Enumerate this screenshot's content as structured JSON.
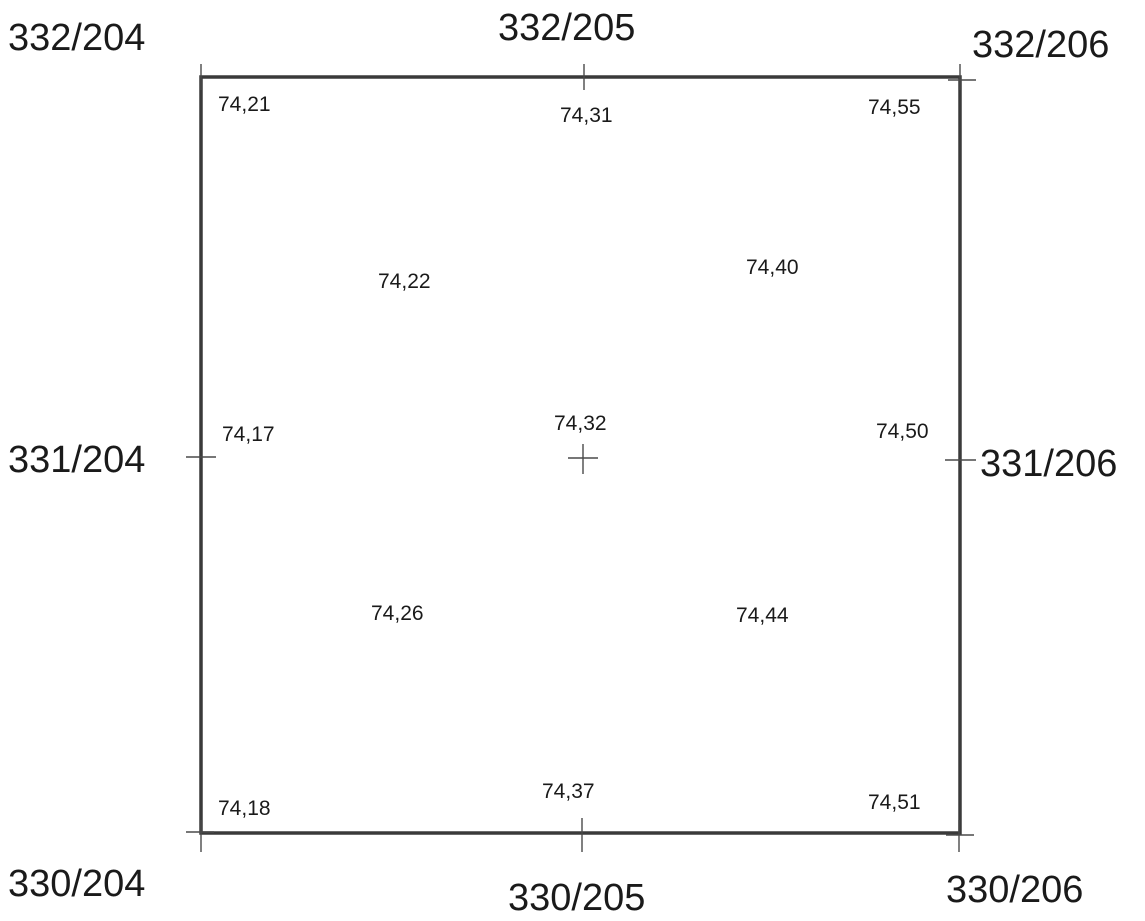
{
  "grid_labels": {
    "top_left": "332/204",
    "top_mid": "332/205",
    "top_right": "332/206",
    "mid_left": "331/204",
    "mid_right": "331/206",
    "bottom_left": "330/204",
    "bottom_mid": "330/205",
    "bottom_right": "330/206"
  },
  "spot_heights": {
    "top_left": "74,21",
    "top_mid": "74,31",
    "top_right": "74,55",
    "upper_left": "74,22",
    "upper_right": "74,40",
    "mid_left": "74,17",
    "center": "74,32",
    "mid_right": "74,50",
    "lower_left": "74,26",
    "lower_right": "74,44",
    "bottom_left": "74,18",
    "bottom_mid": "74,37",
    "bottom_right": "74,51"
  }
}
